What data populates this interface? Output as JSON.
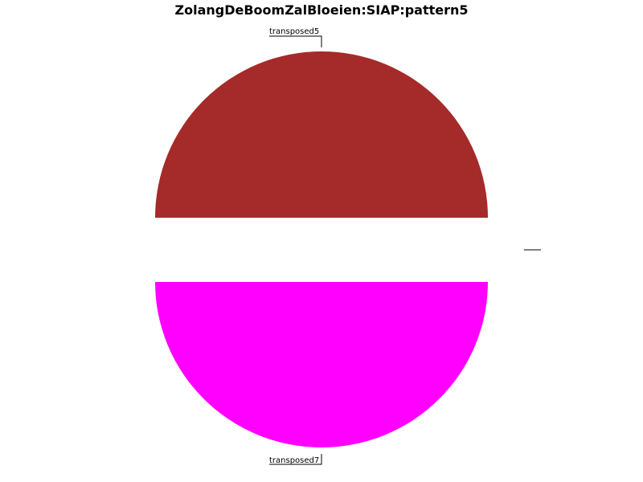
{
  "chart_data": {
    "type": "pie",
    "title": "ZolangDeBoomZalBloeien:SIAP:pattern5",
    "slices": [
      {
        "label": "transposed5",
        "value": 0.5,
        "color": "#a52a2a"
      },
      {
        "label": "",
        "value": 0.0,
        "color": "#ffffff"
      },
      {
        "label": "transposed7",
        "value": 0.5,
        "color": "#ff00ff"
      }
    ]
  }
}
